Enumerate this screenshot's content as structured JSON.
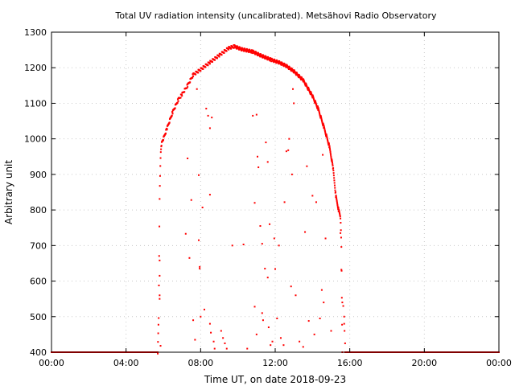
{
  "chart_data": {
    "type": "scatter",
    "title": "Total UV radiation intensity (uncalibrated). Metsähovi Radio Observatory",
    "xlabel": "Time UT, on date 2018-09-23",
    "ylabel": "Arbitrary unit",
    "xlim": [
      0,
      24
    ],
    "ylim": [
      400,
      1300
    ],
    "x_tick_values": [
      0,
      4,
      8,
      12,
      16,
      20,
      24
    ],
    "x_tick_labels": [
      "00:00",
      "04:00",
      "08:00",
      "12:00",
      "16:00",
      "20:00",
      "00:00"
    ],
    "y_tick_values": [
      400,
      500,
      600,
      700,
      800,
      900,
      1000,
      1100,
      1200,
      1300
    ],
    "y_tick_labels": [
      "400",
      "500",
      "600",
      "700",
      "800",
      "900",
      "1000",
      "1100",
      "1200",
      "1300"
    ],
    "grid": true,
    "legend": "none",
    "marker_color": "#ff0000",
    "series": [
      {
        "envelope": [
          [
            5.7,
            400
          ],
          [
            5.75,
            500
          ],
          [
            5.8,
            835
          ],
          [
            5.85,
            950
          ],
          [
            5.9,
            985
          ],
          [
            6.0,
            1000
          ],
          [
            6.2,
            1030
          ],
          [
            6.5,
            1075
          ],
          [
            6.8,
            1110
          ],
          [
            7.0,
            1125
          ],
          [
            7.3,
            1150
          ],
          [
            7.6,
            1180
          ],
          [
            8.0,
            1195
          ],
          [
            8.5,
            1215
          ],
          [
            9.0,
            1235
          ],
          [
            9.5,
            1255
          ],
          [
            9.8,
            1260
          ],
          [
            10.2,
            1252
          ],
          [
            10.8,
            1245
          ],
          [
            11.2,
            1235
          ],
          [
            11.8,
            1222
          ],
          [
            12.2,
            1215
          ],
          [
            12.6,
            1205
          ],
          [
            13.0,
            1190
          ],
          [
            13.5,
            1165
          ],
          [
            14.0,
            1120
          ],
          [
            14.3,
            1085
          ],
          [
            14.6,
            1035
          ],
          [
            14.9,
            980
          ],
          [
            15.1,
            920
          ],
          [
            15.25,
            840
          ],
          [
            15.4,
            800
          ],
          [
            15.5,
            780
          ],
          [
            15.55,
            700
          ],
          [
            15.6,
            400
          ]
        ],
        "dips": [
          [
            5.8,
            658
          ],
          [
            5.8,
            615
          ],
          [
            5.8,
            560
          ],
          [
            5.8,
            550
          ],
          [
            5.85,
            418
          ],
          [
            7.2,
            733
          ],
          [
            7.3,
            945
          ],
          [
            7.4,
            665
          ],
          [
            7.5,
            828
          ],
          [
            7.6,
            490
          ],
          [
            7.7,
            435
          ],
          [
            7.8,
            1140
          ],
          [
            7.9,
            898
          ],
          [
            7.95,
            640
          ],
          [
            7.95,
            635
          ],
          [
            7.9,
            715
          ],
          [
            8.0,
            500
          ],
          [
            8.1,
            807
          ],
          [
            8.2,
            520
          ],
          [
            8.3,
            1085
          ],
          [
            8.4,
            1065
          ],
          [
            8.5,
            1030
          ],
          [
            8.5,
            843
          ],
          [
            8.5,
            480
          ],
          [
            8.55,
            455
          ],
          [
            8.6,
            1060
          ],
          [
            8.7,
            430
          ],
          [
            8.75,
            410
          ],
          [
            9.1,
            460
          ],
          [
            9.2,
            440
          ],
          [
            9.3,
            425
          ],
          [
            9.4,
            410
          ],
          [
            9.7,
            700
          ],
          [
            10.3,
            703
          ],
          [
            10.5,
            410
          ],
          [
            10.8,
            1065
          ],
          [
            10.9,
            820
          ],
          [
            10.9,
            528
          ],
          [
            11.0,
            450
          ],
          [
            11.0,
            1068
          ],
          [
            11.05,
            950
          ],
          [
            11.1,
            920
          ],
          [
            11.2,
            755
          ],
          [
            11.3,
            705
          ],
          [
            11.3,
            510
          ],
          [
            11.35,
            490
          ],
          [
            11.45,
            635
          ],
          [
            11.5,
            990
          ],
          [
            11.6,
            935
          ],
          [
            11.6,
            610
          ],
          [
            11.65,
            470
          ],
          [
            11.7,
            760
          ],
          [
            11.75,
            420
          ],
          [
            11.85,
            430
          ],
          [
            11.95,
            720
          ],
          [
            12.0,
            634
          ],
          [
            12.1,
            495
          ],
          [
            12.2,
            700
          ],
          [
            12.3,
            440
          ],
          [
            12.45,
            420
          ],
          [
            12.5,
            822
          ],
          [
            12.6,
            965
          ],
          [
            12.7,
            968
          ],
          [
            12.75,
            1000
          ],
          [
            12.85,
            585
          ],
          [
            12.9,
            900
          ],
          [
            12.95,
            1140
          ],
          [
            13.0,
            1100
          ],
          [
            13.1,
            560
          ],
          [
            13.3,
            430
          ],
          [
            13.5,
            415
          ],
          [
            13.6,
            738
          ],
          [
            13.7,
            923
          ],
          [
            13.8,
            488
          ],
          [
            14.0,
            840
          ],
          [
            14.1,
            450
          ],
          [
            14.2,
            822
          ],
          [
            14.3,
            1085
          ],
          [
            14.4,
            495
          ],
          [
            14.5,
            575
          ],
          [
            14.55,
            955
          ],
          [
            14.6,
            540
          ],
          [
            14.7,
            720
          ],
          [
            15.0,
            460
          ],
          [
            15.5,
            735
          ],
          [
            15.55,
            632
          ],
          [
            15.6,
            540
          ],
          [
            15.65,
            530
          ],
          [
            15.7,
            500
          ],
          [
            15.7,
            480
          ],
          [
            15.72,
            460
          ],
          [
            15.75,
            425
          ]
        ],
        "baseline_segments": [
          [
            0.0,
            5.7
          ],
          [
            15.75,
            24.0
          ]
        ],
        "baseline_value": 400
      }
    ]
  }
}
